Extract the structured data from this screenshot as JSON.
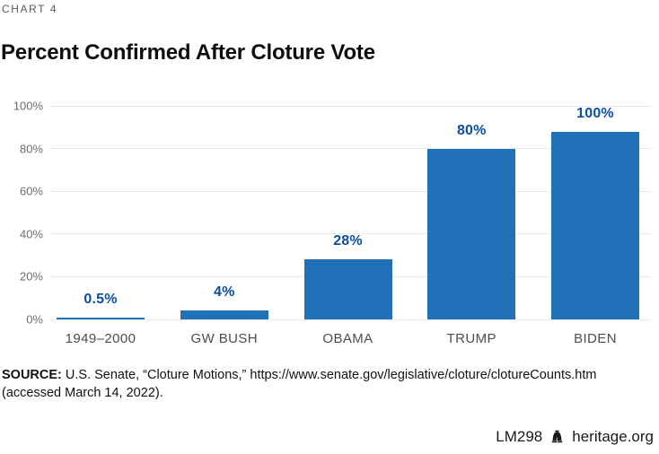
{
  "page": {
    "kicker": "CHART 4",
    "title": "Percent Confirmed After Cloture Vote",
    "source": {
      "label": "SOURCE:",
      "line1": "U.S. Senate, “Cloture Motions,” https://www.senate.gov/legislative/cloture/clotureCounts.htm",
      "line2": "(accessed March 14, 2022)."
    },
    "footer": {
      "doc_id": "LM298",
      "site": "heritage.org"
    }
  },
  "colors": {
    "bar": "#2171b8",
    "value_label": "#0b4ea2",
    "gridline": "#e9e9e9",
    "y_axis_text": "#6e6e6e",
    "category_text": "#4c4c4c"
  },
  "chart_data": {
    "type": "bar",
    "title": "Percent Confirmed After Cloture Vote",
    "categories": [
      "1949–2000",
      "GW BUSH",
      "OBAMA",
      "TRUMP",
      "BIDEN"
    ],
    "values": [
      0.5,
      4,
      28,
      80,
      100
    ],
    "value_labels": [
      "0.5%",
      "4%",
      "28%",
      "80%",
      "100%"
    ],
    "xlabel": "",
    "ylabel": "",
    "ylim": [
      0,
      100
    ],
    "yticks": [
      0,
      20,
      40,
      60,
      80,
      100
    ],
    "ytick_labels": [
      "0%",
      "20%",
      "40%",
      "60%",
      "80%",
      "100%"
    ],
    "grid": true,
    "legend": false
  }
}
